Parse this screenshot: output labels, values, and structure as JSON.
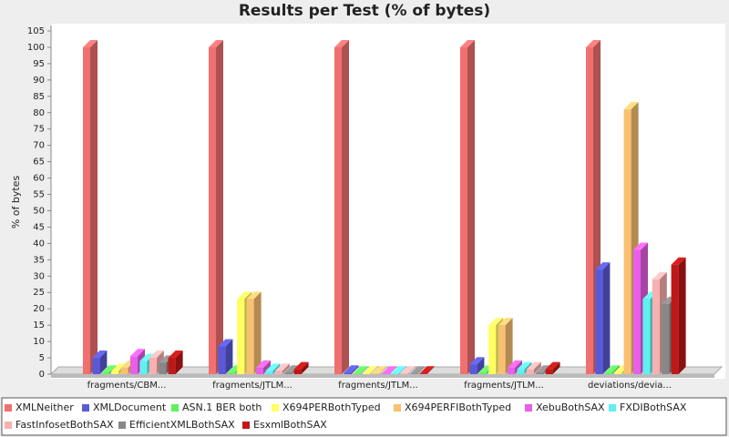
{
  "chart_data": {
    "type": "bar3d",
    "title": "Results per Test (% of bytes)",
    "y_label": "% of bytes",
    "categories": [
      "fragments/CBM...",
      "fragments/JTLM...",
      "fragments/JTLM...",
      "fragments/JTLM...",
      "deviations/devia..."
    ],
    "ylim": [
      0,
      105
    ],
    "yticks": [
      0,
      5,
      10,
      15,
      20,
      25,
      30,
      35,
      40,
      45,
      50,
      55,
      60,
      65,
      70,
      75,
      80,
      85,
      90,
      95,
      100,
      105
    ],
    "series": [
      {
        "name": "XMLNeither",
        "color": "#f07070",
        "values": [
          100,
          100,
          100,
          100,
          100
        ]
      },
      {
        "name": "XMLDocument",
        "color": "#5a5ad8",
        "values": [
          5,
          8.5,
          0.5,
          3,
          32
        ]
      },
      {
        "name": "ASN.1 BER both",
        "color": "#60f060",
        "values": [
          0.5,
          0.5,
          0.2,
          0.5,
          0.5
        ]
      },
      {
        "name": "X694PERBothTyped",
        "color": "#ffff60",
        "values": [
          1,
          23,
          0.2,
          15,
          0.5
        ]
      },
      {
        "name": "X694PERFIBothTyped",
        "color": "#f8c070",
        "values": [
          2,
          23,
          0.2,
          15,
          81
        ]
      },
      {
        "name": "XebuBothSAX",
        "color": "#e860e8",
        "values": [
          5.5,
          2,
          0.2,
          2,
          38
        ]
      },
      {
        "name": "FXDIBothSAX",
        "color": "#60f0f0",
        "values": [
          4,
          1,
          0.2,
          1.5,
          23
        ]
      },
      {
        "name": "FastInfosetBothSAX",
        "color": "#f8b0b0",
        "values": [
          5,
          1,
          0.2,
          1.5,
          29
        ]
      },
      {
        "name": "EfficientXMLBothSAX",
        "color": "#888888",
        "values": [
          3.5,
          0.5,
          0.2,
          0.5,
          21.5
        ]
      },
      {
        "name": "EsxmlBothSAX",
        "color": "#c01818",
        "values": [
          5,
          1.5,
          0.2,
          1.5,
          33.5
        ]
      }
    ]
  }
}
